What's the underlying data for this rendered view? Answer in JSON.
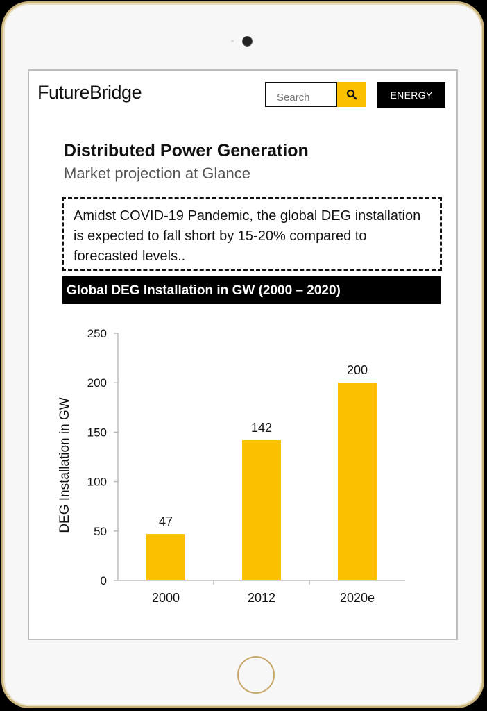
{
  "header": {
    "logo": "FutureBridge",
    "search_placeholder": "Search",
    "search_icon": "search-icon",
    "energy_label": "ENERGY"
  },
  "page": {
    "title": "Distributed Power Generation",
    "subtitle": "Market projection at Glance",
    "callout": "Amidst COVID-19 Pandemic, the global DEG installation is expected to fall short by 15-20% compared to forecasted levels..",
    "chart_banner": "Global DEG Installation in GW (2000 – 2020)"
  },
  "colors": {
    "accent": "#fbc000",
    "bar": "#fbc000",
    "bezel": "#c9b27a"
  },
  "chart_data": {
    "type": "bar",
    "title": "Global DEG Installation in GW (2000 – 2020)",
    "categories": [
      "2000",
      "2012",
      "2020e"
    ],
    "values": [
      47,
      142,
      200
    ],
    "data_labels": [
      "47",
      "142",
      "200"
    ],
    "xlabel": "",
    "ylabel": "DEG Installation in GW",
    "ylim": [
      0,
      250
    ],
    "yticks": [
      0,
      50,
      100,
      150,
      200,
      250
    ],
    "grid": false,
    "legend": "none"
  }
}
